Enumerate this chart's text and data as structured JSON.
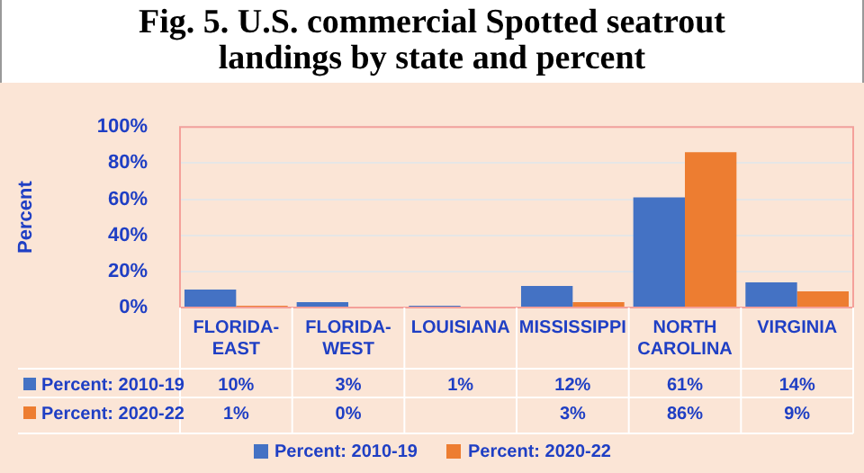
{
  "chart_data": {
    "type": "bar",
    "title": "Fig. 5. U.S. commercial Spotted seatrout landings by state and percent",
    "ylabel": "Percent",
    "categories": [
      "FLORIDA-EAST",
      "FLORIDA-WEST",
      "LOUISIANA",
      "MISSISSIPPI",
      "NORTH CAROLINA",
      "VIRGINIA"
    ],
    "series": [
      {
        "name": "Percent: 2010-19",
        "color": "#4472c4",
        "values": [
          10,
          3,
          1,
          12,
          61,
          14
        ],
        "value_labels": [
          "10%",
          "3%",
          "1%",
          "12%",
          "61%",
          "14%"
        ]
      },
      {
        "name": "Percent: 2020-22",
        "color": "#ed7d31",
        "values": [
          1,
          0,
          null,
          3,
          86,
          9
        ],
        "value_labels": [
          "1%",
          "0%",
          null,
          "3%",
          "86%",
          "9%"
        ]
      }
    ],
    "ylim": [
      0,
      100
    ],
    "yticks": [
      {
        "value": 0,
        "label": "0%"
      },
      {
        "value": 20,
        "label": "20%"
      },
      {
        "value": 40,
        "label": "40%"
      },
      {
        "value": 60,
        "label": "60%"
      },
      {
        "value": 80,
        "label": "80%"
      },
      {
        "value": 100,
        "label": "100%"
      }
    ],
    "grid": "y",
    "legend": "bottom"
  }
}
